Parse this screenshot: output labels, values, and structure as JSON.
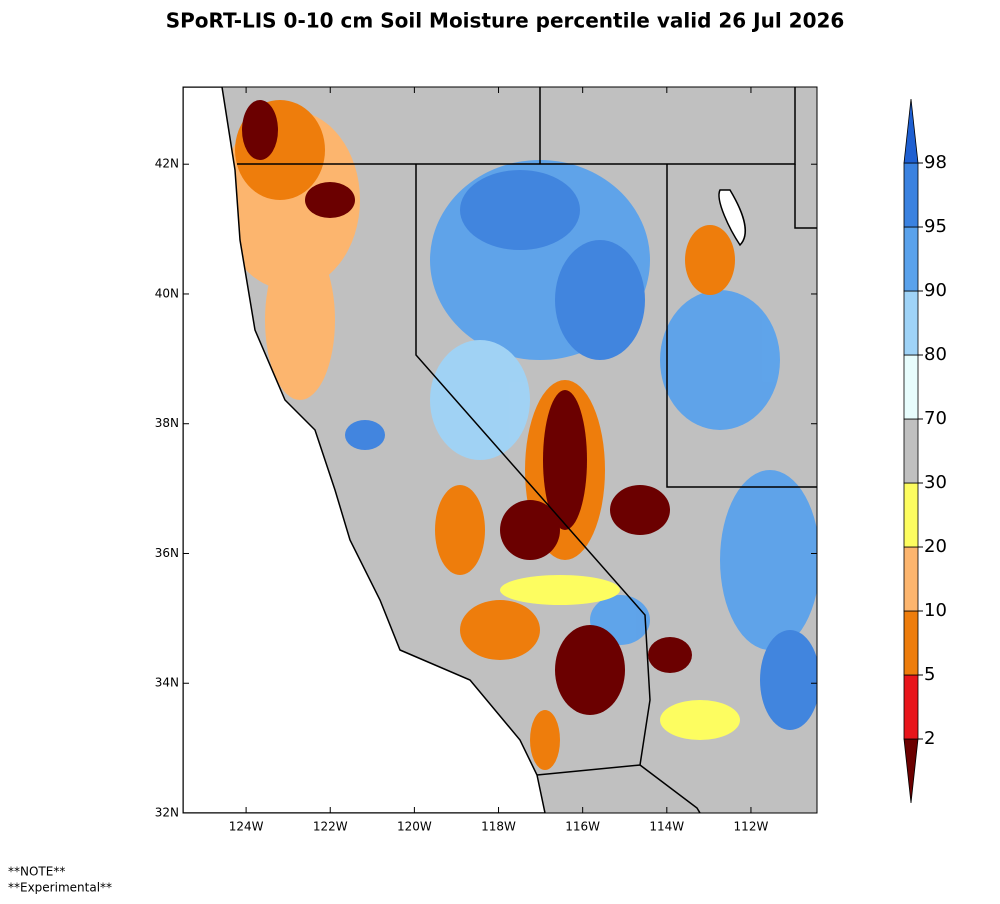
{
  "map": {
    "title": "SPoRT-LIS 0-10 cm Soil Moisture percentile valid 26 Jul 2026",
    "xlim": [
      -125.5,
      -110.43
    ],
    "ylim": [
      32,
      43.19
    ],
    "lat_ticks": [
      {
        "value": 42,
        "label": "42N"
      },
      {
        "value": 40,
        "label": "40N"
      },
      {
        "value": 38,
        "label": "38N"
      },
      {
        "value": 36,
        "label": "36N"
      },
      {
        "value": 34,
        "label": "34N"
      },
      {
        "value": 32,
        "label": "32N"
      }
    ],
    "lon_ticks": [
      {
        "value": -124,
        "label": "124W"
      },
      {
        "value": -122,
        "label": "122W"
      },
      {
        "value": -120,
        "label": "120W"
      },
      {
        "value": -118,
        "label": "118W"
      },
      {
        "value": -116,
        "label": "116W"
      },
      {
        "value": -114,
        "label": "114W"
      },
      {
        "value": -112,
        "label": "112W"
      }
    ],
    "colorbar": {
      "levels": [
        2,
        5,
        10,
        20,
        30,
        70,
        80,
        90,
        95,
        98
      ],
      "colors": [
        "#6b0000",
        "#e8151b",
        "#ee7d0c",
        "#fcb56e",
        "#fdfd60",
        "#c0c0c0",
        "#e8fdfd",
        "#9fd3f7",
        "#5aa2ec",
        "#3b82e0",
        "#1e5fd1"
      ]
    },
    "notes": [
      "**NOTE**",
      "**Experimental**"
    ]
  }
}
